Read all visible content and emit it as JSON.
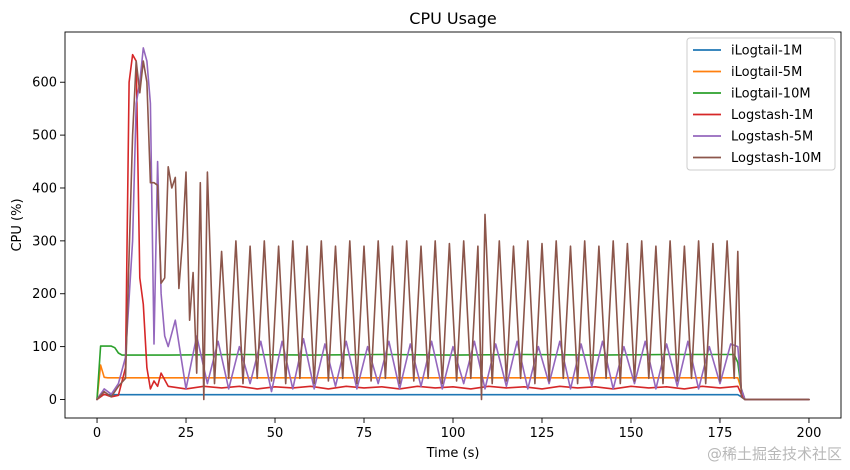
{
  "chart_data": {
    "type": "line",
    "title": "CPU Usage",
    "xlabel": "Time (s)",
    "ylabel": "CPU (%)",
    "xlim": [
      -9,
      209
    ],
    "ylim": [
      -35,
      695
    ],
    "xticks": [
      0,
      25,
      50,
      75,
      100,
      125,
      150,
      175,
      200
    ],
    "yticks": [
      0,
      100,
      200,
      300,
      400,
      500,
      600
    ],
    "grid": false,
    "legend_position": "top-right",
    "series": [
      {
        "name": "iLogtail-1M",
        "color": "#1f77b4",
        "x": [
          0,
          1,
          2,
          180,
          181,
          182,
          200
        ],
        "values": [
          0,
          10,
          9,
          9,
          5,
          0,
          0
        ]
      },
      {
        "name": "iLogtail-5M",
        "color": "#ff7f0e",
        "x": [
          0,
          1,
          2,
          3,
          180,
          181,
          182,
          200
        ],
        "values": [
          0,
          65,
          42,
          41,
          41,
          20,
          0,
          0
        ]
      },
      {
        "name": "iLogtail-10M",
        "color": "#2ca02c",
        "x": [
          0,
          1,
          4,
          5,
          6,
          7,
          20,
          40,
          60,
          80,
          100,
          120,
          140,
          160,
          179,
          180,
          181,
          182,
          200
        ],
        "values": [
          0,
          101,
          101,
          98,
          88,
          84,
          84,
          85,
          84,
          85,
          84,
          85,
          84,
          85,
          85,
          70,
          20,
          0,
          0
        ]
      },
      {
        "name": "Logstash-1M",
        "color": "#d62728",
        "x": [
          0,
          2,
          4,
          6,
          8,
          9,
          10,
          11,
          12,
          13,
          14,
          15,
          16,
          17,
          18,
          20,
          25,
          30,
          35,
          40,
          45,
          50,
          55,
          60,
          65,
          70,
          75,
          80,
          85,
          90,
          95,
          100,
          105,
          110,
          115,
          120,
          125,
          130,
          135,
          140,
          145,
          150,
          155,
          160,
          165,
          170,
          175,
          180,
          181,
          182,
          200
        ],
        "values": [
          0,
          10,
          5,
          8,
          60,
          600,
          652,
          640,
          230,
          180,
          60,
          20,
          35,
          25,
          50,
          25,
          20,
          25,
          22,
          25,
          20,
          24,
          22,
          25,
          20,
          25,
          22,
          24,
          20,
          25,
          22,
          24,
          20,
          25,
          22,
          24,
          20,
          25,
          22,
          24,
          20,
          25,
          22,
          24,
          20,
          25,
          22,
          25,
          10,
          0,
          0
        ]
      },
      {
        "name": "Logstash-5M",
        "color": "#9467bd",
        "x": [
          0,
          2,
          4,
          6,
          8,
          10,
          11,
          12,
          13,
          14,
          15,
          16,
          17,
          18,
          19,
          20,
          22,
          25,
          28,
          31,
          34,
          37,
          40,
          43,
          46,
          49,
          52,
          55,
          58,
          61,
          64,
          67,
          70,
          73,
          76,
          79,
          82,
          85,
          88,
          91,
          94,
          97,
          100,
          103,
          106,
          109,
          112,
          115,
          118,
          121,
          124,
          127,
          130,
          133,
          136,
          139,
          142,
          145,
          148,
          151,
          154,
          157,
          160,
          163,
          166,
          169,
          172,
          175,
          178,
          180,
          181,
          182,
          200
        ],
        "values": [
          0,
          20,
          10,
          30,
          80,
          300,
          560,
          600,
          665,
          640,
          560,
          105,
          450,
          200,
          120,
          100,
          150,
          20,
          120,
          30,
          110,
          20,
          100,
          30,
          110,
          15,
          110,
          20,
          115,
          20,
          105,
          25,
          110,
          20,
          100,
          30,
          110,
          20,
          105,
          25,
          110,
          20,
          100,
          30,
          110,
          20,
          105,
          25,
          110,
          20,
          100,
          30,
          110,
          20,
          105,
          25,
          110,
          20,
          100,
          30,
          110,
          20,
          105,
          25,
          110,
          20,
          100,
          30,
          105,
          100,
          20,
          0,
          0
        ]
      },
      {
        "name": "Logstash-10M",
        "color": "#8c564b",
        "x": [
          0,
          2,
          4,
          6,
          8,
          10,
          11,
          12,
          13,
          14,
          15,
          16,
          17,
          18,
          19,
          20,
          21,
          22,
          23,
          24,
          25,
          26,
          27,
          28,
          29,
          30,
          31,
          33,
          35,
          37,
          39,
          41,
          43,
          45,
          47,
          49,
          51,
          53,
          55,
          57,
          59,
          61,
          63,
          65,
          67,
          69,
          71,
          73,
          75,
          77,
          79,
          81,
          83,
          85,
          87,
          89,
          91,
          93,
          95,
          97,
          99,
          101,
          103,
          105,
          107,
          108,
          109,
          111,
          113,
          115,
          117,
          119,
          121,
          123,
          125,
          127,
          129,
          131,
          133,
          135,
          137,
          139,
          141,
          143,
          145,
          147,
          149,
          151,
          153,
          155,
          157,
          159,
          161,
          163,
          165,
          167,
          169,
          171,
          173,
          175,
          177,
          179,
          180,
          181,
          182,
          200
        ],
        "values": [
          0,
          15,
          5,
          25,
          40,
          500,
          640,
          580,
          640,
          600,
          410,
          410,
          405,
          220,
          230,
          440,
          400,
          420,
          210,
          300,
          430,
          150,
          240,
          50,
          410,
          0,
          430,
          30,
          280,
          40,
          300,
          30,
          290,
          40,
          300,
          35,
          290,
          30,
          300,
          40,
          290,
          30,
          300,
          35,
          290,
          40,
          300,
          30,
          290,
          35,
          300,
          40,
          290,
          30,
          300,
          35,
          290,
          40,
          300,
          30,
          295,
          35,
          300,
          40,
          290,
          0,
          350,
          30,
          300,
          35,
          290,
          40,
          300,
          30,
          295,
          35,
          300,
          40,
          290,
          30,
          300,
          35,
          290,
          40,
          300,
          30,
          295,
          35,
          300,
          40,
          290,
          30,
          300,
          35,
          290,
          40,
          300,
          30,
          295,
          35,
          300,
          40,
          280,
          5,
          0,
          0
        ]
      }
    ]
  },
  "watermark": "@稀土掘金技术社区"
}
